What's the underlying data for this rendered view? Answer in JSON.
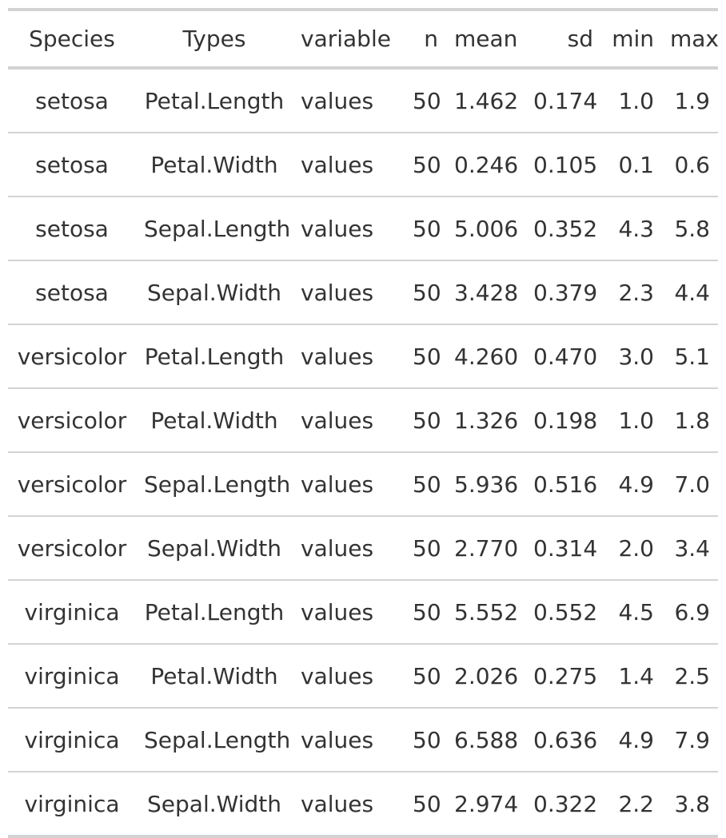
{
  "table": {
    "headers": [
      "Species",
      "Types",
      "variable",
      "n",
      "mean",
      "sd",
      "min",
      "max"
    ],
    "rows": [
      [
        "setosa",
        "Petal.Length",
        "values",
        "50",
        "1.462",
        "0.174",
        "1.0",
        "1.9"
      ],
      [
        "setosa",
        "Petal.Width",
        "values",
        "50",
        "0.246",
        "0.105",
        "0.1",
        "0.6"
      ],
      [
        "setosa",
        "Sepal.Length",
        "values",
        "50",
        "5.006",
        "0.352",
        "4.3",
        "5.8"
      ],
      [
        "setosa",
        "Sepal.Width",
        "values",
        "50",
        "3.428",
        "0.379",
        "2.3",
        "4.4"
      ],
      [
        "versicolor",
        "Petal.Length",
        "values",
        "50",
        "4.260",
        "0.470",
        "3.0",
        "5.1"
      ],
      [
        "versicolor",
        "Petal.Width",
        "values",
        "50",
        "1.326",
        "0.198",
        "1.0",
        "1.8"
      ],
      [
        "versicolor",
        "Sepal.Length",
        "values",
        "50",
        "5.936",
        "0.516",
        "4.9",
        "7.0"
      ],
      [
        "versicolor",
        "Sepal.Width",
        "values",
        "50",
        "2.770",
        "0.314",
        "2.0",
        "3.4"
      ],
      [
        "virginica",
        "Petal.Length",
        "values",
        "50",
        "5.552",
        "0.552",
        "4.5",
        "6.9"
      ],
      [
        "virginica",
        "Petal.Width",
        "values",
        "50",
        "2.026",
        "0.275",
        "1.4",
        "2.5"
      ],
      [
        "virginica",
        "Sepal.Length",
        "values",
        "50",
        "6.588",
        "0.636",
        "4.9",
        "7.9"
      ],
      [
        "virginica",
        "Sepal.Width",
        "values",
        "50",
        "2.974",
        "0.322",
        "2.2",
        "3.8"
      ]
    ]
  },
  "colors": {
    "text": "#333333",
    "rule": "#d3d3d3",
    "background": "#ffffff"
  }
}
